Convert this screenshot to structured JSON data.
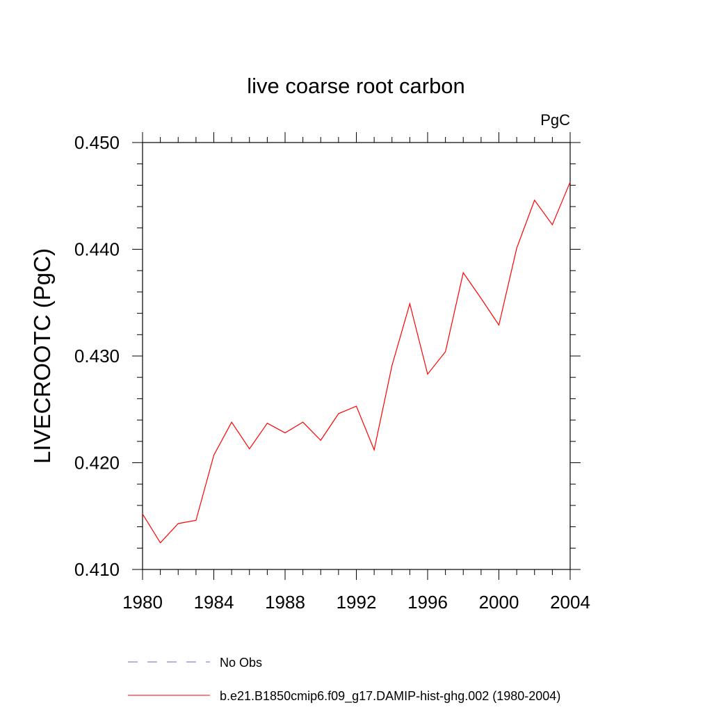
{
  "chart_data": {
    "type": "line",
    "title": "live coarse root carbon",
    "units_label": "PgC",
    "xlabel": "",
    "ylabel": "LIVECROOTC  (PgC)",
    "xlim": [
      1980,
      2004
    ],
    "ylim": [
      0.41,
      0.45
    ],
    "xticks": [
      1980,
      1984,
      1988,
      1992,
      1996,
      2000,
      2004
    ],
    "xtick_labels": [
      "1980",
      "1984",
      "1988",
      "1992",
      "1996",
      "2000",
      "2004"
    ],
    "yticks": [
      0.41,
      0.42,
      0.43,
      0.44,
      0.45
    ],
    "ytick_labels": [
      "0.410",
      "0.420",
      "0.430",
      "0.440",
      "0.450"
    ],
    "grid": false,
    "legend_position": "bottom",
    "series": [
      {
        "name": "No Obs",
        "color": "#6666cc",
        "dash": "dashed",
        "x": [],
        "values": []
      },
      {
        "name": "b.e21.B1850cmip6.f09_g17.DAMIP-hist-ghg.002 (1980-2004)",
        "color": "#ff0000",
        "dash": "solid",
        "x": [
          1980,
          1981,
          1982,
          1983,
          1984,
          1985,
          1986,
          1987,
          1988,
          1989,
          1990,
          1991,
          1992,
          1993,
          1994,
          1995,
          1996,
          1997,
          1998,
          1999,
          2000,
          2001,
          2002,
          2003,
          2004
        ],
        "values": [
          0.4152,
          0.4125,
          0.4143,
          0.4146,
          0.4207,
          0.4238,
          0.4213,
          0.4237,
          0.4228,
          0.4238,
          0.4221,
          0.4246,
          0.4253,
          0.4212,
          0.4291,
          0.4349,
          0.4283,
          0.4304,
          0.4378,
          0.4354,
          0.4329,
          0.4401,
          0.4446,
          0.4423,
          0.4463
        ]
      }
    ]
  }
}
